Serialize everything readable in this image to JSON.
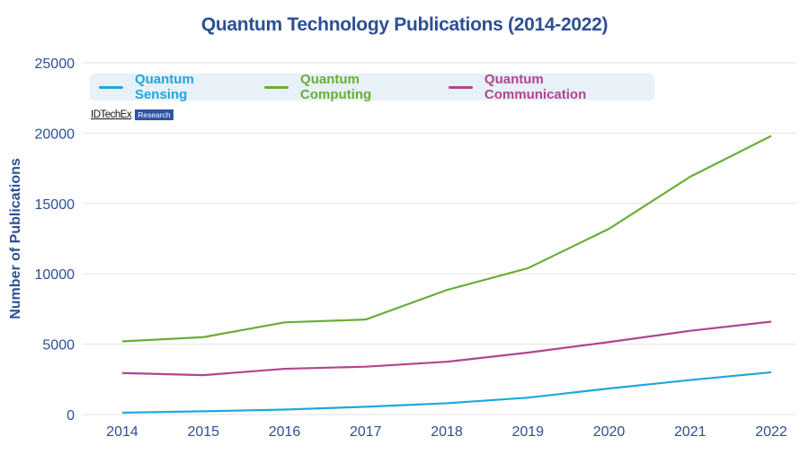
{
  "chart_data": {
    "type": "line",
    "title": "Quantum Technology Publications (2014-2022)",
    "xlabel": "",
    "ylabel": "Number of Publications",
    "x": [
      "2014",
      "2015",
      "2016",
      "2017",
      "2018",
      "2019",
      "2020",
      "2021",
      "2022"
    ],
    "ylim": [
      0,
      25000
    ],
    "yticks": [
      "0",
      "5000",
      "10000",
      "15000",
      "20000",
      "25000"
    ],
    "grid": true,
    "legend_position": "top-left",
    "series": [
      {
        "name": "Quantum Sensing",
        "color": "#1ea7dc",
        "values": [
          130,
          230,
          350,
          550,
          800,
          1200,
          1850,
          2450,
          3000
        ]
      },
      {
        "name": "Quantum Computing",
        "color": "#6aae35",
        "values": [
          5200,
          5500,
          6550,
          6750,
          8850,
          10400,
          13200,
          16900,
          19800
        ]
      },
      {
        "name": "Quantum Communication",
        "color": "#b0458f",
        "values": [
          2950,
          2800,
          3250,
          3400,
          3750,
          4400,
          5150,
          5950,
          6600
        ]
      }
    ]
  },
  "branding": {
    "name": "IDTechEx",
    "tag": "Research"
  }
}
